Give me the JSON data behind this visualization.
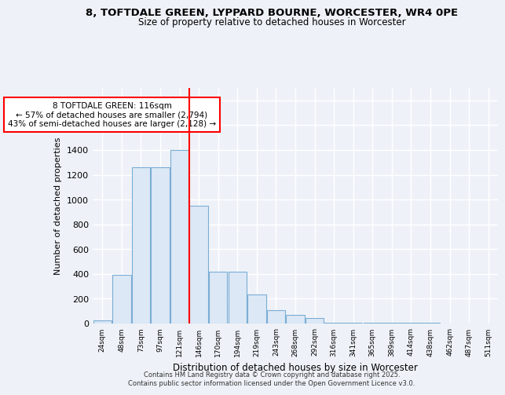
{
  "title_line1": "8, TOFTDALE GREEN, LYPPARD BOURNE, WORCESTER, WR4 0PE",
  "title_line2": "Size of property relative to detached houses in Worcester",
  "xlabel": "Distribution of detached houses by size in Worcester",
  "ylabel": "Number of detached properties",
  "bar_labels": [
    "24sqm",
    "48sqm",
    "73sqm",
    "97sqm",
    "121sqm",
    "146sqm",
    "170sqm",
    "194sqm",
    "219sqm",
    "243sqm",
    "268sqm",
    "292sqm",
    "316sqm",
    "341sqm",
    "365sqm",
    "389sqm",
    "414sqm",
    "438sqm",
    "462sqm",
    "487sqm",
    "511sqm"
  ],
  "bar_values": [
    25,
    390,
    1260,
    1260,
    1400,
    950,
    415,
    415,
    235,
    110,
    68,
    45,
    5,
    5,
    5,
    5,
    5,
    5,
    3,
    3,
    3
  ],
  "bar_color": "#dce8f5",
  "bar_edge_color": "#7aadd4",
  "vline_x": 4.5,
  "vline_color": "red",
  "annotation_text": "8 TOFTDALE GREEN: 116sqm\n← 57% of detached houses are smaller (2,794)\n43% of semi-detached houses are larger (2,128) →",
  "annotation_box_color": "white",
  "annotation_box_edgecolor": "red",
  "ylim": [
    0,
    1900
  ],
  "yticks": [
    0,
    200,
    400,
    600,
    800,
    1000,
    1200,
    1400,
    1600,
    1800
  ],
  "bg_color": "#eef2f8",
  "grid_color": "white",
  "footer_line1": "Contains HM Land Registry data © Crown copyright and database right 2025.",
  "footer_line2": "Contains public sector information licensed under the Open Government Licence v3.0."
}
